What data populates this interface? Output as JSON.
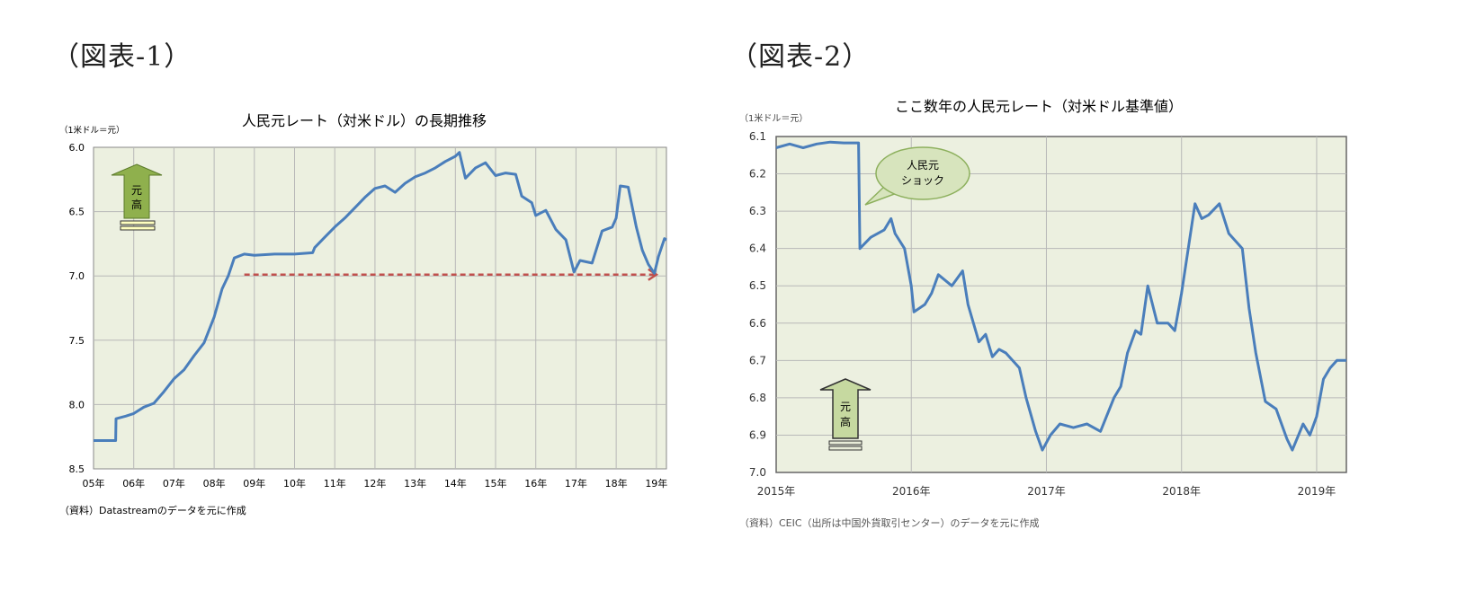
{
  "panels": [
    {
      "heading": "（図表-1）"
    },
    {
      "heading": "（図表-2）"
    }
  ],
  "chart_data": [
    {
      "type": "line",
      "title": "人民元レート（対米ドル）の長期推移",
      "unit_label": "（1米ドル＝元）",
      "source": "（資料）Datastreamのデータを元に作成",
      "y_inverted": true,
      "ylim": [
        6.0,
        8.5
      ],
      "y_ticks": [
        "6.0",
        "6.5",
        "7.0",
        "7.5",
        "8.0",
        "8.5"
      ],
      "x_range": [
        2005,
        2019.25
      ],
      "x_ticks": [
        "05年",
        "06年",
        "07年",
        "08年",
        "09年",
        "10年",
        "11年",
        "12年",
        "13年",
        "14年",
        "15年",
        "16年",
        "17年",
        "18年",
        "19年"
      ],
      "grid": true,
      "arrow_labels": [
        "元",
        "高"
      ],
      "series": [
        {
          "color": "#4a7ebb",
          "points": [
            [
              2005.0,
              8.28
            ],
            [
              2005.55,
              8.28
            ],
            [
              2005.56,
              8.11
            ],
            [
              2005.8,
              8.09
            ],
            [
              2006.0,
              8.07
            ],
            [
              2006.25,
              8.02
            ],
            [
              2006.5,
              7.99
            ],
            [
              2006.75,
              7.9
            ],
            [
              2007.0,
              7.8
            ],
            [
              2007.25,
              7.73
            ],
            [
              2007.5,
              7.62
            ],
            [
              2007.75,
              7.52
            ],
            [
              2008.0,
              7.32
            ],
            [
              2008.2,
              7.1
            ],
            [
              2008.35,
              7.0
            ],
            [
              2008.5,
              6.86
            ],
            [
              2008.75,
              6.83
            ],
            [
              2009.0,
              6.84
            ],
            [
              2009.5,
              6.83
            ],
            [
              2010.0,
              6.83
            ],
            [
              2010.45,
              6.82
            ],
            [
              2010.5,
              6.78
            ],
            [
              2010.75,
              6.7
            ],
            [
              2011.0,
              6.62
            ],
            [
              2011.25,
              6.55
            ],
            [
              2011.5,
              6.47
            ],
            [
              2011.75,
              6.39
            ],
            [
              2012.0,
              6.32
            ],
            [
              2012.25,
              6.3
            ],
            [
              2012.5,
              6.35
            ],
            [
              2012.75,
              6.28
            ],
            [
              2013.0,
              6.23
            ],
            [
              2013.25,
              6.2
            ],
            [
              2013.5,
              6.16
            ],
            [
              2013.75,
              6.11
            ],
            [
              2014.0,
              6.07
            ],
            [
              2014.1,
              6.04
            ],
            [
              2014.25,
              6.24
            ],
            [
              2014.5,
              6.16
            ],
            [
              2014.75,
              6.12
            ],
            [
              2015.0,
              6.22
            ],
            [
              2015.25,
              6.2
            ],
            [
              2015.5,
              6.21
            ],
            [
              2015.65,
              6.38
            ],
            [
              2015.9,
              6.43
            ],
            [
              2016.0,
              6.53
            ],
            [
              2016.25,
              6.49
            ],
            [
              2016.5,
              6.64
            ],
            [
              2016.75,
              6.72
            ],
            [
              2016.95,
              6.97
            ],
            [
              2017.1,
              6.88
            ],
            [
              2017.4,
              6.9
            ],
            [
              2017.65,
              6.65
            ],
            [
              2017.9,
              6.62
            ],
            [
              2018.0,
              6.55
            ],
            [
              2018.1,
              6.3
            ],
            [
              2018.3,
              6.31
            ],
            [
              2018.5,
              6.62
            ],
            [
              2018.65,
              6.8
            ],
            [
              2018.8,
              6.91
            ],
            [
              2018.95,
              6.98
            ],
            [
              2019.05,
              6.85
            ],
            [
              2019.2,
              6.71
            ],
            [
              2019.25,
              6.72
            ]
          ]
        }
      ],
      "reference_line": {
        "x_start": 2008.75,
        "x_end": 2019.0,
        "y": 6.99,
        "color": "#c0504d"
      }
    },
    {
      "type": "line",
      "title": "ここ数年の人民元レート（対米ドル基準値）",
      "unit_label": "（1米ドル＝元）",
      "source": "（資料）CEIC（出所は中国外貨取引センター）のデータを元に作成",
      "y_inverted": true,
      "ylim": [
        6.1,
        7.0
      ],
      "y_ticks": [
        "6.1",
        "6.2",
        "6.3",
        "6.4",
        "6.5",
        "6.6",
        "6.7",
        "6.8",
        "6.9",
        "7.0"
      ],
      "x_range": [
        2015.0,
        2019.22
      ],
      "x_ticks": [
        "2015年",
        "2016年",
        "2017年",
        "2018年",
        "2019年"
      ],
      "grid": true,
      "callout_lines": [
        "人民元",
        "ショック"
      ],
      "arrow_labels": [
        "元",
        "高"
      ],
      "series": [
        {
          "color": "#4a7ebb",
          "points": [
            [
              2015.0,
              6.13
            ],
            [
              2015.1,
              6.12
            ],
            [
              2015.2,
              6.13
            ],
            [
              2015.3,
              6.12
            ],
            [
              2015.4,
              6.115
            ],
            [
              2015.5,
              6.117
            ],
            [
              2015.61,
              6.117
            ],
            [
              2015.62,
              6.4
            ],
            [
              2015.7,
              6.37
            ],
            [
              2015.8,
              6.35
            ],
            [
              2015.85,
              6.32
            ],
            [
              2015.88,
              6.36
            ],
            [
              2015.95,
              6.4
            ],
            [
              2016.0,
              6.5
            ],
            [
              2016.02,
              6.57
            ],
            [
              2016.1,
              6.55
            ],
            [
              2016.15,
              6.52
            ],
            [
              2016.2,
              6.47
            ],
            [
              2016.3,
              6.5
            ],
            [
              2016.38,
              6.46
            ],
            [
              2016.42,
              6.55
            ],
            [
              2016.5,
              6.65
            ],
            [
              2016.55,
              6.63
            ],
            [
              2016.6,
              6.69
            ],
            [
              2016.65,
              6.67
            ],
            [
              2016.7,
              6.68
            ],
            [
              2016.8,
              6.72
            ],
            [
              2016.85,
              6.8
            ],
            [
              2016.92,
              6.89
            ],
            [
              2016.97,
              6.94
            ],
            [
              2017.03,
              6.9
            ],
            [
              2017.1,
              6.87
            ],
            [
              2017.2,
              6.88
            ],
            [
              2017.3,
              6.87
            ],
            [
              2017.4,
              6.89
            ],
            [
              2017.5,
              6.8
            ],
            [
              2017.55,
              6.77
            ],
            [
              2017.6,
              6.68
            ],
            [
              2017.66,
              6.62
            ],
            [
              2017.7,
              6.63
            ],
            [
              2017.75,
              6.5
            ],
            [
              2017.82,
              6.6
            ],
            [
              2017.9,
              6.6
            ],
            [
              2017.95,
              6.62
            ],
            [
              2018.0,
              6.52
            ],
            [
              2018.05,
              6.4
            ],
            [
              2018.1,
              6.28
            ],
            [
              2018.15,
              6.32
            ],
            [
              2018.2,
              6.31
            ],
            [
              2018.28,
              6.28
            ],
            [
              2018.35,
              6.36
            ],
            [
              2018.45,
              6.4
            ],
            [
              2018.5,
              6.56
            ],
            [
              2018.55,
              6.68
            ],
            [
              2018.62,
              6.81
            ],
            [
              2018.7,
              6.83
            ],
            [
              2018.78,
              6.91
            ],
            [
              2018.82,
              6.94
            ],
            [
              2018.9,
              6.87
            ],
            [
              2018.95,
              6.9
            ],
            [
              2019.0,
              6.85
            ],
            [
              2019.05,
              6.75
            ],
            [
              2019.1,
              6.72
            ],
            [
              2019.15,
              6.7
            ],
            [
              2019.22,
              6.7
            ]
          ]
        }
      ]
    }
  ]
}
